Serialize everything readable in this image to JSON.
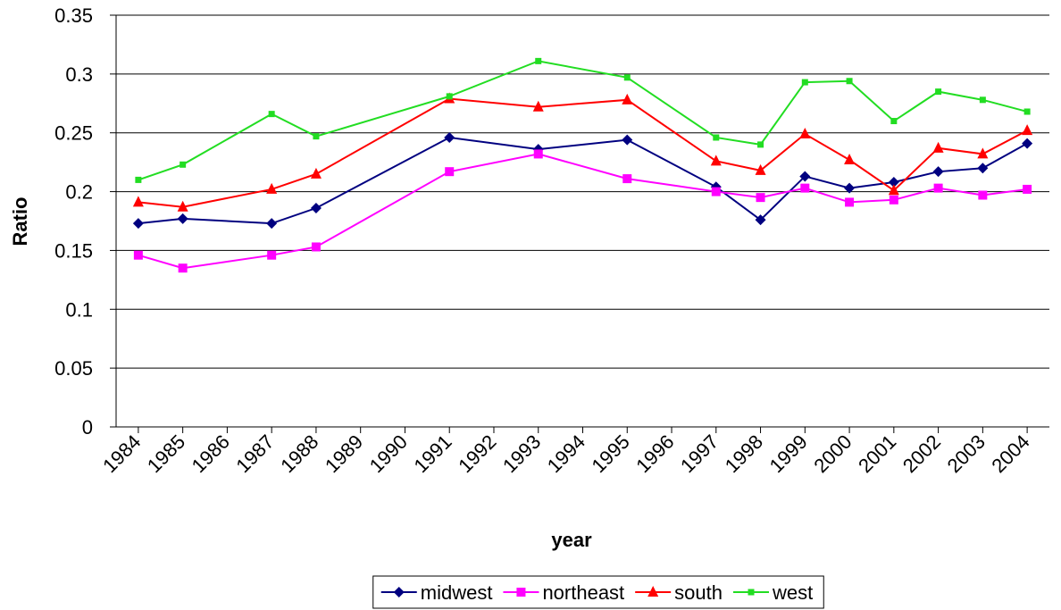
{
  "chart_data": {
    "type": "line",
    "x_label": "year",
    "y_label": "Ratio",
    "x": [
      1984,
      1985,
      1987,
      1988,
      1991,
      1993,
      1995,
      1997,
      1998,
      1999,
      2000,
      2001,
      2002,
      2003,
      2004
    ],
    "xlim": [
      1983.5,
      2004.5
    ],
    "xticks": [
      1984,
      1985,
      1986,
      1987,
      1988,
      1989,
      1990,
      1991,
      1992,
      1993,
      1994,
      1995,
      1996,
      1997,
      1998,
      1999,
      2000,
      2001,
      2002,
      2003,
      2004
    ],
    "ylim": [
      0,
      0.35
    ],
    "yticks": [
      0,
      0.05,
      0.1,
      0.15,
      0.2,
      0.25,
      0.3,
      0.35
    ],
    "grid": true,
    "legend": "bottom",
    "series": [
      {
        "name": "midwest",
        "color": "#000080",
        "marker": "diamond",
        "values": [
          0.173,
          0.177,
          0.173,
          0.186,
          0.246,
          0.236,
          0.244,
          0.204,
          0.176,
          0.213,
          0.203,
          0.208,
          0.217,
          0.22,
          0.241
        ]
      },
      {
        "name": "northeast",
        "color": "#ff00ff",
        "marker": "square",
        "values": [
          0.146,
          0.135,
          0.146,
          0.153,
          0.217,
          0.232,
          0.211,
          0.2,
          0.195,
          0.203,
          0.191,
          0.193,
          0.203,
          0.197,
          0.202
        ]
      },
      {
        "name": "south",
        "color": "#ff0000",
        "marker": "triangle",
        "values": [
          0.191,
          0.187,
          0.202,
          0.215,
          0.279,
          0.272,
          0.278,
          0.226,
          0.218,
          0.249,
          0.227,
          0.201,
          0.237,
          0.232,
          0.252
        ]
      },
      {
        "name": "west",
        "color": "#22dd22",
        "marker": "small-square",
        "values": [
          0.21,
          0.223,
          0.266,
          0.247,
          0.281,
          0.311,
          0.297,
          0.246,
          0.24,
          0.293,
          0.294,
          0.26,
          0.285,
          0.278,
          0.268
        ]
      }
    ]
  }
}
